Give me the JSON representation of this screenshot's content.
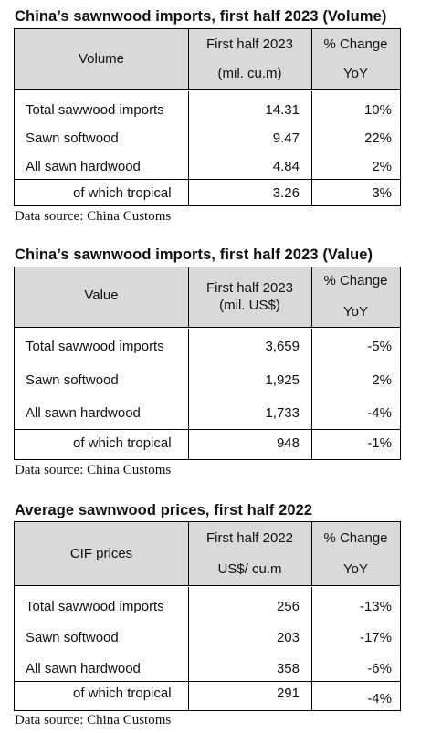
{
  "tables": [
    {
      "title": "China’s sawnwood imports, first half 2023 (Volume)",
      "header": {
        "label": "Volume",
        "col2_line1": "First half 2023",
        "col2_line2": "(mil. cu.m)",
        "col3_line1": "% Change",
        "col3_line2": "YoY"
      },
      "rows": [
        {
          "label": "Total sawwood imports",
          "value": "14.31",
          "change": "10%"
        },
        {
          "label": "Sawn softwood",
          "value": "9.47",
          "change": "22%"
        },
        {
          "label": "All sawn hardwood",
          "value": "4.84",
          "change": "2%"
        },
        {
          "label": "of which tropical",
          "value": "3.26",
          "change": "3%"
        }
      ],
      "source": "Data source: China Customs"
    },
    {
      "title": "China’s sawnwood imports, first half 2023 (Value)",
      "header": {
        "label": "Value",
        "col2_line1": "First half 2023",
        "col2_line2": "(mil. US$)",
        "col3_line1": "% Change",
        "col3_line2": "YoY"
      },
      "rows": [
        {
          "label": "Total sawwood imports",
          "value": "3,659",
          "change": "-5%"
        },
        {
          "label": "Sawn softwood",
          "value": "1,925",
          "change": "2%"
        },
        {
          "label": "All sawn hardwood",
          "value": "1,733",
          "change": "-4%"
        },
        {
          "label": "of which tropical",
          "value": "948",
          "change": "-1%"
        }
      ],
      "source": "Data source: China Customs"
    },
    {
      "title": "Average sawnwood prices, first half 2022",
      "header": {
        "label": "CIF prices",
        "col2_line1": "First half 2022",
        "col2_line2": "US$/ cu.m",
        "col3_line1": "% Change",
        "col3_line2": "YoY"
      },
      "rows": [
        {
          "label": "Total sawwood imports",
          "value": "256",
          "change": "-13%"
        },
        {
          "label": "Sawn softwood",
          "value": "203",
          "change": "-17%"
        },
        {
          "label": "All sawn hardwood",
          "value": "358",
          "change": "-6%"
        },
        {
          "label": "of which tropical",
          "value": "291",
          "change": "-4%"
        }
      ],
      "source": "Data source: China Customs"
    }
  ]
}
